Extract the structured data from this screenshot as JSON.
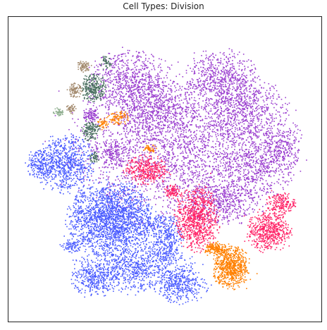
{
  "chart_data": {
    "type": "scatter",
    "title": "Cell Types: Division",
    "xlabel": "",
    "ylabel": "",
    "grid": false,
    "legend": "none",
    "series": [
      {
        "color": "#9b3fcf",
        "clusters": [
          {
            "cx": 0.55,
            "cy": 0.58,
            "rx": 0.3,
            "ry": 0.22,
            "w": 0.3
          },
          {
            "cx": 0.38,
            "cy": 0.8,
            "rx": 0.11,
            "ry": 0.08,
            "w": 0.06
          },
          {
            "cx": 0.68,
            "cy": 0.8,
            "rx": 0.1,
            "ry": 0.08,
            "w": 0.06
          },
          {
            "cx": 0.75,
            "cy": 0.7,
            "rx": 0.12,
            "ry": 0.09,
            "w": 0.06
          },
          {
            "cx": 0.8,
            "cy": 0.52,
            "rx": 0.11,
            "ry": 0.09,
            "w": 0.05
          },
          {
            "cx": 0.45,
            "cy": 0.7,
            "rx": 0.12,
            "ry": 0.08,
            "w": 0.06
          },
          {
            "cx": 0.68,
            "cy": 0.4,
            "rx": 0.1,
            "ry": 0.07,
            "w": 0.05
          },
          {
            "cx": 0.88,
            "cy": 0.58,
            "rx": 0.05,
            "ry": 0.07,
            "w": 0.02
          },
          {
            "cx": 0.33,
            "cy": 0.55,
            "rx": 0.05,
            "ry": 0.04,
            "w": 0.02
          },
          {
            "cx": 0.26,
            "cy": 0.68,
            "rx": 0.02,
            "ry": 0.02,
            "w": 0.01
          }
        ]
      },
      {
        "color": "#4a5bff",
        "clusters": [
          {
            "cx": 0.33,
            "cy": 0.34,
            "rx": 0.12,
            "ry": 0.1,
            "w": 0.22
          },
          {
            "cx": 0.18,
            "cy": 0.52,
            "rx": 0.08,
            "ry": 0.08,
            "w": 0.08
          },
          {
            "cx": 0.1,
            "cy": 0.52,
            "rx": 0.04,
            "ry": 0.04,
            "w": 0.02
          },
          {
            "cx": 0.4,
            "cy": 0.18,
            "rx": 0.16,
            "ry": 0.07,
            "w": 0.1
          },
          {
            "cx": 0.55,
            "cy": 0.12,
            "rx": 0.07,
            "ry": 0.05,
            "w": 0.04
          },
          {
            "cx": 0.5,
            "cy": 0.28,
            "rx": 0.05,
            "ry": 0.07,
            "w": 0.04
          },
          {
            "cx": 0.27,
            "cy": 0.14,
            "rx": 0.06,
            "ry": 0.05,
            "w": 0.03
          },
          {
            "cx": 0.2,
            "cy": 0.25,
            "rx": 0.03,
            "ry": 0.02,
            "w": 0.01
          }
        ]
      },
      {
        "color": "#ff2266",
        "clusters": [
          {
            "cx": 0.6,
            "cy": 0.34,
            "rx": 0.06,
            "ry": 0.09,
            "w": 0.09
          },
          {
            "cx": 0.83,
            "cy": 0.3,
            "rx": 0.06,
            "ry": 0.06,
            "w": 0.06
          },
          {
            "cx": 0.87,
            "cy": 0.39,
            "rx": 0.04,
            "ry": 0.03,
            "w": 0.02
          },
          {
            "cx": 0.44,
            "cy": 0.5,
            "rx": 0.06,
            "ry": 0.04,
            "w": 0.04
          },
          {
            "cx": 0.52,
            "cy": 0.43,
            "rx": 0.02,
            "ry": 0.02,
            "w": 0.01
          }
        ]
      },
      {
        "color": "#ff8000",
        "clusters": [
          {
            "cx": 0.71,
            "cy": 0.18,
            "rx": 0.05,
            "ry": 0.06,
            "w": 0.08
          },
          {
            "cx": 0.66,
            "cy": 0.24,
            "rx": 0.03,
            "ry": 0.02,
            "w": 0.02
          },
          {
            "cx": 0.35,
            "cy": 0.67,
            "rx": 0.03,
            "ry": 0.02,
            "w": 0.01
          },
          {
            "cx": 0.3,
            "cy": 0.65,
            "rx": 0.015,
            "ry": 0.015,
            "w": 0.005
          },
          {
            "cx": 0.45,
            "cy": 0.57,
            "rx": 0.02,
            "ry": 0.01,
            "w": 0.005
          }
        ]
      },
      {
        "color": "#4a7060",
        "clusters": [
          {
            "cx": 0.27,
            "cy": 0.77,
            "rx": 0.035,
            "ry": 0.04,
            "w": 0.03
          },
          {
            "cx": 0.26,
            "cy": 0.63,
            "rx": 0.025,
            "ry": 0.03,
            "w": 0.015
          },
          {
            "cx": 0.27,
            "cy": 0.54,
            "rx": 0.015,
            "ry": 0.015,
            "w": 0.005
          },
          {
            "cx": 0.31,
            "cy": 0.85,
            "rx": 0.015,
            "ry": 0.02,
            "w": 0.005
          }
        ]
      },
      {
        "color": "#a38a6e",
        "clusters": [
          {
            "cx": 0.21,
            "cy": 0.76,
            "rx": 0.02,
            "ry": 0.02,
            "w": 0.01
          },
          {
            "cx": 0.24,
            "cy": 0.84,
            "rx": 0.02,
            "ry": 0.015,
            "w": 0.008
          },
          {
            "cx": 0.2,
            "cy": 0.7,
            "rx": 0.015,
            "ry": 0.015,
            "w": 0.005
          }
        ]
      },
      {
        "color": "#8fae8f",
        "clusters": [
          {
            "cx": 0.16,
            "cy": 0.69,
            "rx": 0.015,
            "ry": 0.012,
            "w": 0.005
          }
        ]
      }
    ]
  }
}
